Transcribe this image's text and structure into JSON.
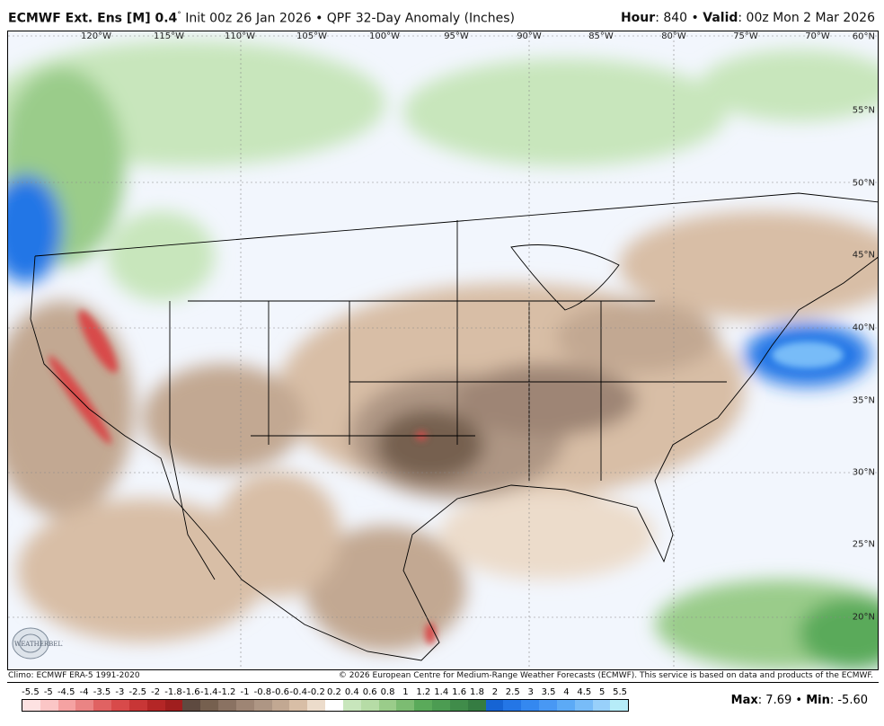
{
  "header": {
    "model": "ECMWF Ext. Ens [M] 0.4",
    "degree": "°",
    "init": "Init 00z 26 Jan 2026",
    "sep": "•",
    "product": "QPF 32-Day Anomaly (Inches)",
    "hour_label": "Hour",
    "hour": ": 840",
    "valid_label": "Valid",
    "valid": ": 00z Mon 2 Mar 2026"
  },
  "map": {
    "lon_labels": [
      "120°W",
      "115°W",
      "110°W",
      "105°W",
      "100°W",
      "95°W",
      "90°W",
      "85°W",
      "80°W",
      "75°W",
      "70°W"
    ],
    "lat_labels": [
      "60°N",
      "55°N",
      "50°N",
      "45°N",
      "40°N",
      "35°N",
      "30°N",
      "25°N",
      "20°N"
    ],
    "logo_text": "WeatherBELL"
  },
  "footer": {
    "climo": "Climo: ECMWF ERA-5 1991-2020",
    "copyright": "© 2026 European Centre for Medium-Range Weather Forecasts (ECMWF). This service is based on data and products of the ECMWF."
  },
  "colorbar": {
    "labels": [
      "-5.5",
      "-5",
      "-4.5",
      "-4",
      "-3.5",
      "-3",
      "-2.5",
      "-2",
      "-1.8",
      "-1.6",
      "-1.4",
      "-1.2",
      "-1",
      "-0.8",
      "-0.6",
      "-0.4",
      "-0.2",
      "0.2",
      "0.4",
      "0.6",
      "0.8",
      "1",
      "1.2",
      "1.4",
      "1.6",
      "1.8",
      "2",
      "2.5",
      "3",
      "3.5",
      "4",
      "4.5",
      "5",
      "5.5"
    ],
    "colors": [
      "#fde2e2",
      "#fbc6c6",
      "#f5a2a2",
      "#ea8484",
      "#e06262",
      "#d84a4a",
      "#c83636",
      "#b42626",
      "#a01e1e",
      "#5e4a40",
      "#76604f",
      "#8a7262",
      "#9e8574",
      "#ae9684",
      "#c2a892",
      "#d8bea6",
      "#ecdccb",
      "#ffffff",
      "#c8e6bc",
      "#b6dca6",
      "#9acc8a",
      "#7cbc72",
      "#5aaa5a",
      "#4c9c52",
      "#408c4a",
      "#357c42",
      "#1664d4",
      "#2476e6",
      "#3488f0",
      "#4898f4",
      "#5caaf6",
      "#78bcf8",
      "#98d0fa",
      "#b6ecf8"
    ]
  },
  "stats": {
    "max_label": "Max",
    "max": ": 7.69",
    "sep": " • ",
    "min_label": "Min",
    "min": ": -5.60"
  }
}
